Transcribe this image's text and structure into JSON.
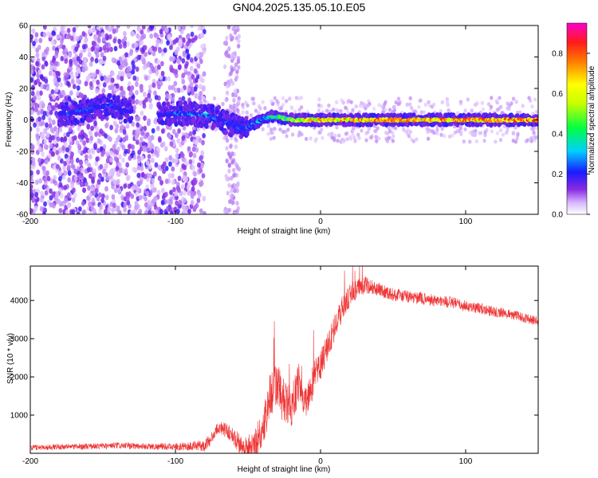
{
  "title": "GN04.2025.135.05.10.E05",
  "colors": {
    "snr_line": "#ee3333",
    "dot_low": "#d9b8ff",
    "dot_mid": "#7a1ee6",
    "ridge_high": "#ff2a2a",
    "frame": "#000000"
  },
  "chart_data": [
    {
      "type": "heatmap",
      "name": "spectrogram",
      "xlabel": "Height of straight line (km)",
      "ylabel": "Frequency (Hz)",
      "xlim": [
        -200,
        150
      ],
      "ylim": [
        -60,
        60
      ],
      "xticks": [
        "-200",
        "-100",
        "0",
        "100"
      ],
      "xtick_values": [
        -200,
        -100,
        0,
        100
      ],
      "yticks": [
        "-60",
        "-40",
        "-20",
        "0",
        "20",
        "40",
        "60"
      ],
      "ytick_values": [
        -60,
        -40,
        -20,
        0,
        20,
        40,
        60
      ],
      "colorbar": {
        "label": "Normalized spectral amplitude",
        "range": [
          0,
          0.95
        ],
        "ticks": [
          "0.0",
          "0.2",
          "0.4",
          "0.6",
          "0.8"
        ],
        "tick_values": [
          0,
          0.2,
          0.4,
          0.6,
          0.8
        ]
      },
      "ridge": {
        "x": [
          -180,
          -165,
          -155,
          -145,
          -135,
          -110,
          -100,
          -90,
          -80,
          -70,
          -65,
          -60,
          -55,
          -50,
          -45,
          -40,
          -35,
          -30,
          -20,
          -10,
          0,
          20,
          40,
          60,
          80,
          100,
          120,
          150
        ],
        "freq": [
          4,
          5,
          8,
          9,
          6,
          3,
          4,
          4,
          3,
          1,
          -2,
          -3,
          -5,
          -5,
          -2,
          1,
          2,
          2,
          0,
          0,
          0,
          0,
          0,
          0,
          0,
          0,
          0,
          0
        ],
        "amplitude": [
          0.3,
          0.3,
          0.3,
          0.3,
          0.2,
          0.25,
          0.35,
          0.4,
          0.4,
          0.35,
          0.3,
          0.35,
          0.3,
          0.3,
          0.4,
          0.45,
          0.45,
          0.5,
          0.7,
          0.8,
          0.85,
          0.85,
          0.9,
          0.9,
          0.9,
          0.9,
          0.9,
          0.95
        ]
      },
      "noise_region_x": [
        -200,
        -80
      ]
    },
    {
      "type": "line",
      "name": "snr",
      "xlabel": "Height of straight line (km)",
      "ylabel": "SNR (10 * v/v)",
      "xlim": [
        -200,
        150
      ],
      "ylim": [
        0,
        4900
      ],
      "xticks": [
        "-200",
        "-100",
        "0",
        "100"
      ],
      "xtick_values": [
        -200,
        -100,
        0,
        100
      ],
      "yticks": [
        "1000",
        "2000",
        "3000",
        "4000"
      ],
      "ytick_values": [
        1000,
        2000,
        3000,
        4000
      ],
      "envelope": {
        "x": [
          -200,
          -180,
          -160,
          -140,
          -120,
          -100,
          -90,
          -80,
          -75,
          -70,
          -65,
          -60,
          -55,
          -50,
          -45,
          -40,
          -35,
          -30,
          -25,
          -20,
          -15,
          -10,
          -5,
          0,
          5,
          10,
          15,
          20,
          25,
          30,
          40,
          50,
          60,
          70,
          80,
          90,
          100,
          110,
          120,
          130,
          140,
          150
        ],
        "y": [
          150,
          170,
          180,
          200,
          180,
          170,
          180,
          200,
          400,
          700,
          600,
          450,
          200,
          120,
          250,
          600,
          1500,
          1800,
          1300,
          1200,
          1900,
          1300,
          1900,
          2300,
          2800,
          3300,
          3800,
          4100,
          4300,
          4400,
          4300,
          4150,
          4100,
          4050,
          4000,
          3950,
          3850,
          3800,
          3700,
          3650,
          3550,
          3450
        ]
      },
      "noise": {
        "x": [
          -200,
          -100,
          -80,
          -60,
          -40,
          -30,
          -20,
          -10,
          0,
          20,
          40,
          100,
          150
        ],
        "amplitude": [
          120,
          150,
          250,
          350,
          900,
          1100,
          900,
          800,
          700,
          500,
          300,
          250,
          200
        ]
      }
    }
  ]
}
